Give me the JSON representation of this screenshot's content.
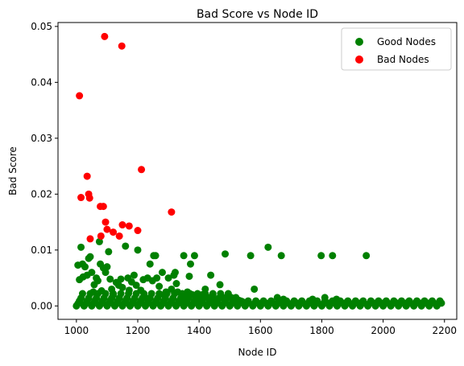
{
  "chart_data": {
    "type": "scatter",
    "title": "Bad Score vs Node ID",
    "xlabel": "Node ID",
    "ylabel": "Bad Score",
    "xlim": [
      940,
      2240
    ],
    "ylim": [
      -0.0024,
      0.0507
    ],
    "x_ticks": [
      1000,
      1200,
      1400,
      1600,
      1800,
      2000,
      2200
    ],
    "x_tick_labels": [
      "1000",
      "1200",
      "1400",
      "1600",
      "1800",
      "2000",
      "2200"
    ],
    "y_ticks": [
      0.0,
      0.01,
      0.02,
      0.03,
      0.04,
      0.05
    ],
    "y_tick_labels": [
      "0.00",
      "0.01",
      "0.02",
      "0.03",
      "0.04",
      "0.05"
    ],
    "grid": false,
    "legend_position": "top-right",
    "series": [
      {
        "name": "Good Nodes",
        "color": "#008000",
        "points": [
          [
            1005,
            0.0073
          ],
          [
            1010,
            0.0047
          ],
          [
            1015,
            0.0105
          ],
          [
            1020,
            0.0075
          ],
          [
            1022,
            0.0052
          ],
          [
            1028,
            0.007
          ],
          [
            1035,
            0.0055
          ],
          [
            1040,
            0.0085
          ],
          [
            1045,
            0.0088
          ],
          [
            1050,
            0.006
          ],
          [
            1055,
            0.0025
          ],
          [
            1058,
            0.0038
          ],
          [
            1065,
            0.005
          ],
          [
            1070,
            0.0045
          ],
          [
            1075,
            0.0115
          ],
          [
            1078,
            0.0075
          ],
          [
            1082,
            0.0027
          ],
          [
            1088,
            0.0068
          ],
          [
            1095,
            0.006
          ],
          [
            1100,
            0.007
          ],
          [
            1105,
            0.0097
          ],
          [
            1110,
            0.0048
          ],
          [
            1115,
            0.003
          ],
          [
            1120,
            0.002
          ],
          [
            1130,
            0.0042
          ],
          [
            1138,
            0.0037
          ],
          [
            1145,
            0.0048
          ],
          [
            1150,
            0.0033
          ],
          [
            1160,
            0.0107
          ],
          [
            1168,
            0.005
          ],
          [
            1172,
            0.0028
          ],
          [
            1180,
            0.0043
          ],
          [
            1188,
            0.0055
          ],
          [
            1195,
            0.0037
          ],
          [
            1200,
            0.01
          ],
          [
            1210,
            0.0028
          ],
          [
            1218,
            0.0047
          ],
          [
            1225,
            0.0015
          ],
          [
            1232,
            0.005
          ],
          [
            1240,
            0.0075
          ],
          [
            1248,
            0.0045
          ],
          [
            1252,
            0.009
          ],
          [
            1258,
            0.009
          ],
          [
            1262,
            0.005
          ],
          [
            1270,
            0.0035
          ],
          [
            1280,
            0.006
          ],
          [
            1285,
            0.002
          ],
          [
            1292,
            0.0025
          ],
          [
            1300,
            0.005
          ],
          [
            1310,
            0.003
          ],
          [
            1318,
            0.0055
          ],
          [
            1322,
            0.006
          ],
          [
            1326,
            0.004
          ],
          [
            1330,
            0.0025
          ],
          [
            1340,
            0.001
          ],
          [
            1350,
            0.009
          ],
          [
            1355,
            0.0015
          ],
          [
            1362,
            0.0025
          ],
          [
            1368,
            0.0053
          ],
          [
            1372,
            0.0075
          ],
          [
            1378,
            0.002
          ],
          [
            1385,
            0.009
          ],
          [
            1392,
            0.0015
          ],
          [
            1400,
            0.001
          ],
          [
            1410,
            0.002
          ],
          [
            1420,
            0.003
          ],
          [
            1430,
            0.0015
          ],
          [
            1438,
            0.0055
          ],
          [
            1445,
            0.002
          ],
          [
            1455,
            0.001
          ],
          [
            1468,
            0.0038
          ],
          [
            1478,
            0.0015
          ],
          [
            1485,
            0.0093
          ],
          [
            1495,
            0.002
          ],
          [
            1505,
            0.0015
          ],
          [
            1512,
            0.001
          ],
          [
            1520,
            0.0015
          ],
          [
            1530,
            0.001
          ],
          [
            1540,
            0.0008
          ],
          [
            1555,
            0.0005
          ],
          [
            1568,
            0.009
          ],
          [
            1580,
            0.003
          ],
          [
            1592,
            0.0005
          ],
          [
            1605,
            0.0005
          ],
          [
            1618,
            0.0005
          ],
          [
            1625,
            0.0105
          ],
          [
            1640,
            0.0005
          ],
          [
            1655,
            0.0015
          ],
          [
            1668,
            0.009
          ],
          [
            1675,
            0.0012
          ],
          [
            1690,
            0.0005
          ],
          [
            1705,
            0.0005
          ],
          [
            1720,
            0.0005
          ],
          [
            1740,
            0.0005
          ],
          [
            1760,
            0.0005
          ],
          [
            1770,
            0.0012
          ],
          [
            1785,
            0.0005
          ],
          [
            1798,
            0.009
          ],
          [
            1810,
            0.0015
          ],
          [
            1822,
            0.0005
          ],
          [
            1835,
            0.009
          ],
          [
            1848,
            0.0012
          ],
          [
            1860,
            0.0005
          ],
          [
            1875,
            0.0005
          ],
          [
            1890,
            0.0005
          ],
          [
            1905,
            0.0005
          ],
          [
            1920,
            0.0005
          ],
          [
            1935,
            0.0005
          ],
          [
            1945,
            0.009
          ],
          [
            1958,
            0.0005
          ],
          [
            1970,
            0.0005
          ],
          [
            1985,
            0.0005
          ],
          [
            2000,
            0.0005
          ],
          [
            2015,
            0.0005
          ],
          [
            2030,
            0.0005
          ],
          [
            2045,
            0.0005
          ],
          [
            2060,
            0.0005
          ],
          [
            2075,
            0.0005
          ],
          [
            2090,
            0.0005
          ],
          [
            2105,
            0.0005
          ],
          [
            2120,
            0.0005
          ],
          [
            2135,
            0.0005
          ],
          [
            2150,
            0.0005
          ],
          [
            2165,
            0.0005
          ],
          [
            2180,
            0.0005
          ],
          [
            2190,
            0.0005
          ]
        ],
        "baseline_band": {
          "x_from": 1000,
          "x_to": 2190,
          "step": 5,
          "levels": [
            0.0,
            0.0004,
            0.0009,
            0.0014,
            0.0022
          ]
        }
      },
      {
        "name": "Bad Nodes",
        "color": "#ff0000",
        "points": [
          [
            1010,
            0.0376
          ],
          [
            1015,
            0.0194
          ],
          [
            1035,
            0.0232
          ],
          [
            1040,
            0.02
          ],
          [
            1043,
            0.0193
          ],
          [
            1045,
            0.012
          ],
          [
            1078,
            0.0178
          ],
          [
            1080,
            0.0125
          ],
          [
            1088,
            0.0178
          ],
          [
            1092,
            0.0482
          ],
          [
            1095,
            0.015
          ],
          [
            1100,
            0.0137
          ],
          [
            1120,
            0.0132
          ],
          [
            1140,
            0.0125
          ],
          [
            1148,
            0.0465
          ],
          [
            1150,
            0.0145
          ],
          [
            1172,
            0.0143
          ],
          [
            1200,
            0.0135
          ],
          [
            1212,
            0.0244
          ],
          [
            1310,
            0.0168
          ]
        ]
      }
    ]
  }
}
